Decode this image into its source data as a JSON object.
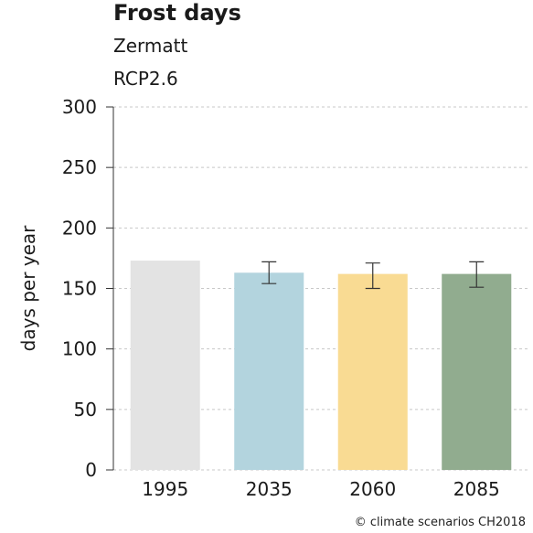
{
  "chart_data": {
    "type": "bar",
    "title": "Frost days",
    "subtitle_lines": [
      "Zermatt",
      "RCP2.6"
    ],
    "ylabel": "days per year",
    "xlabel": "",
    "categories": [
      "1995",
      "2035",
      "2060",
      "2085"
    ],
    "values": [
      173,
      163,
      162,
      162
    ],
    "error_low": [
      null,
      154,
      150,
      151
    ],
    "error_high": [
      null,
      172,
      171,
      172
    ],
    "colors": [
      "#e3e3e3",
      "#b3d4de",
      "#f9db93",
      "#91ac8f"
    ],
    "ylim": [
      0,
      300
    ],
    "yticks": [
      0,
      50,
      100,
      150,
      200,
      250,
      300
    ],
    "grid": true,
    "legend": "none"
  },
  "copyright": "© climate scenarios CH2018"
}
